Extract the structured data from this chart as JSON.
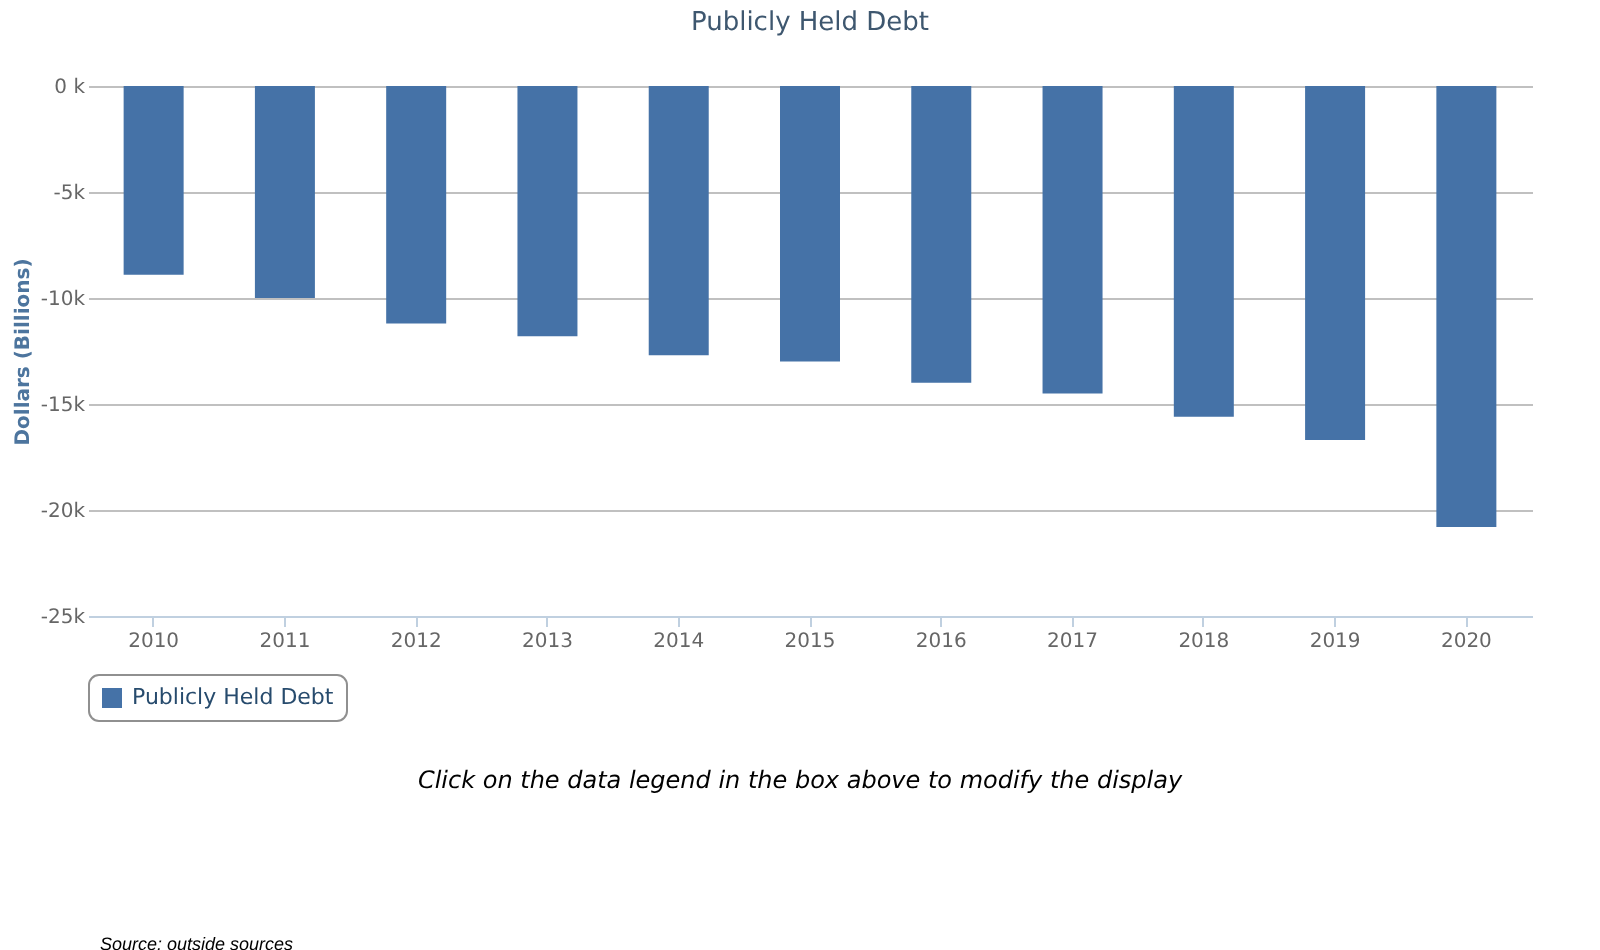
{
  "chart_data": {
    "type": "bar",
    "title": "Publicly Held Debt",
    "ylabel": "Dollars (Billions)",
    "categories": [
      "2010",
      "2011",
      "2012",
      "2013",
      "2014",
      "2015",
      "2016",
      "2017",
      "2018",
      "2019",
      "2020"
    ],
    "series": [
      {
        "name": "Publicly Held Debt",
        "color": "#4572a7",
        "values": [
          -8900,
          -10000,
          -11200,
          -11800,
          -12700,
          -13000,
          -14000,
          -14500,
          -15600,
          -16700,
          -20800
        ]
      }
    ],
    "ylim": [
      -25000,
      0
    ],
    "yticks": [
      {
        "value": -25000,
        "label": "-25k"
      },
      {
        "value": -20000,
        "label": "-20k"
      },
      {
        "value": -15000,
        "label": "-15k"
      },
      {
        "value": -10000,
        "label": "-10k"
      },
      {
        "value": -5000,
        "label": "-5k"
      },
      {
        "value": 0,
        "label": "0 k"
      }
    ],
    "grid": "y",
    "legend": "bottom",
    "annotations": [
      "Click on the data legend in the box above to modify the display",
      "Source: outside sources"
    ]
  }
}
